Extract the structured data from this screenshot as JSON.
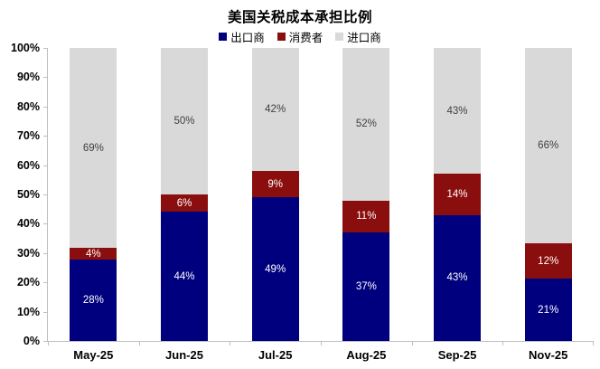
{
  "title": "美国关税成本承担比例",
  "legend": [
    {
      "label": "出口商",
      "color": "#00007E"
    },
    {
      "label": "消费者",
      "color": "#8B0E0E"
    },
    {
      "label": "进口商",
      "color": "#D9D9D9"
    }
  ],
  "chart_data": {
    "type": "bar",
    "stacked": true,
    "percent_stacked": true,
    "title": "美国关税成本承担比例",
    "categories": [
      "May-25",
      "Jun-25",
      "Jul-25",
      "Aug-25",
      "Sep-25",
      "Nov-25"
    ],
    "series": [
      {
        "name": "出口商",
        "color": "#00007E",
        "label_color": "#FFFFFF",
        "values": [
          28,
          44,
          49,
          37,
          43,
          21
        ]
      },
      {
        "name": "消费者",
        "color": "#8B0E0E",
        "label_color": "#FFFFFF",
        "values": [
          4,
          6,
          9,
          11,
          14,
          12
        ]
      },
      {
        "name": "进口商",
        "color": "#D9D9D9",
        "label_color": "#404040",
        "values": [
          69,
          50,
          42,
          52,
          43,
          66
        ]
      }
    ],
    "ylim": [
      0,
      100
    ],
    "y_ticks": [
      "100%",
      "90%",
      "80%",
      "70%",
      "60%",
      "50%",
      "40%",
      "30%",
      "20%",
      "10%",
      "0%"
    ],
    "grid": false,
    "legend_position": "top",
    "axis_color": "#BFBFBF"
  }
}
